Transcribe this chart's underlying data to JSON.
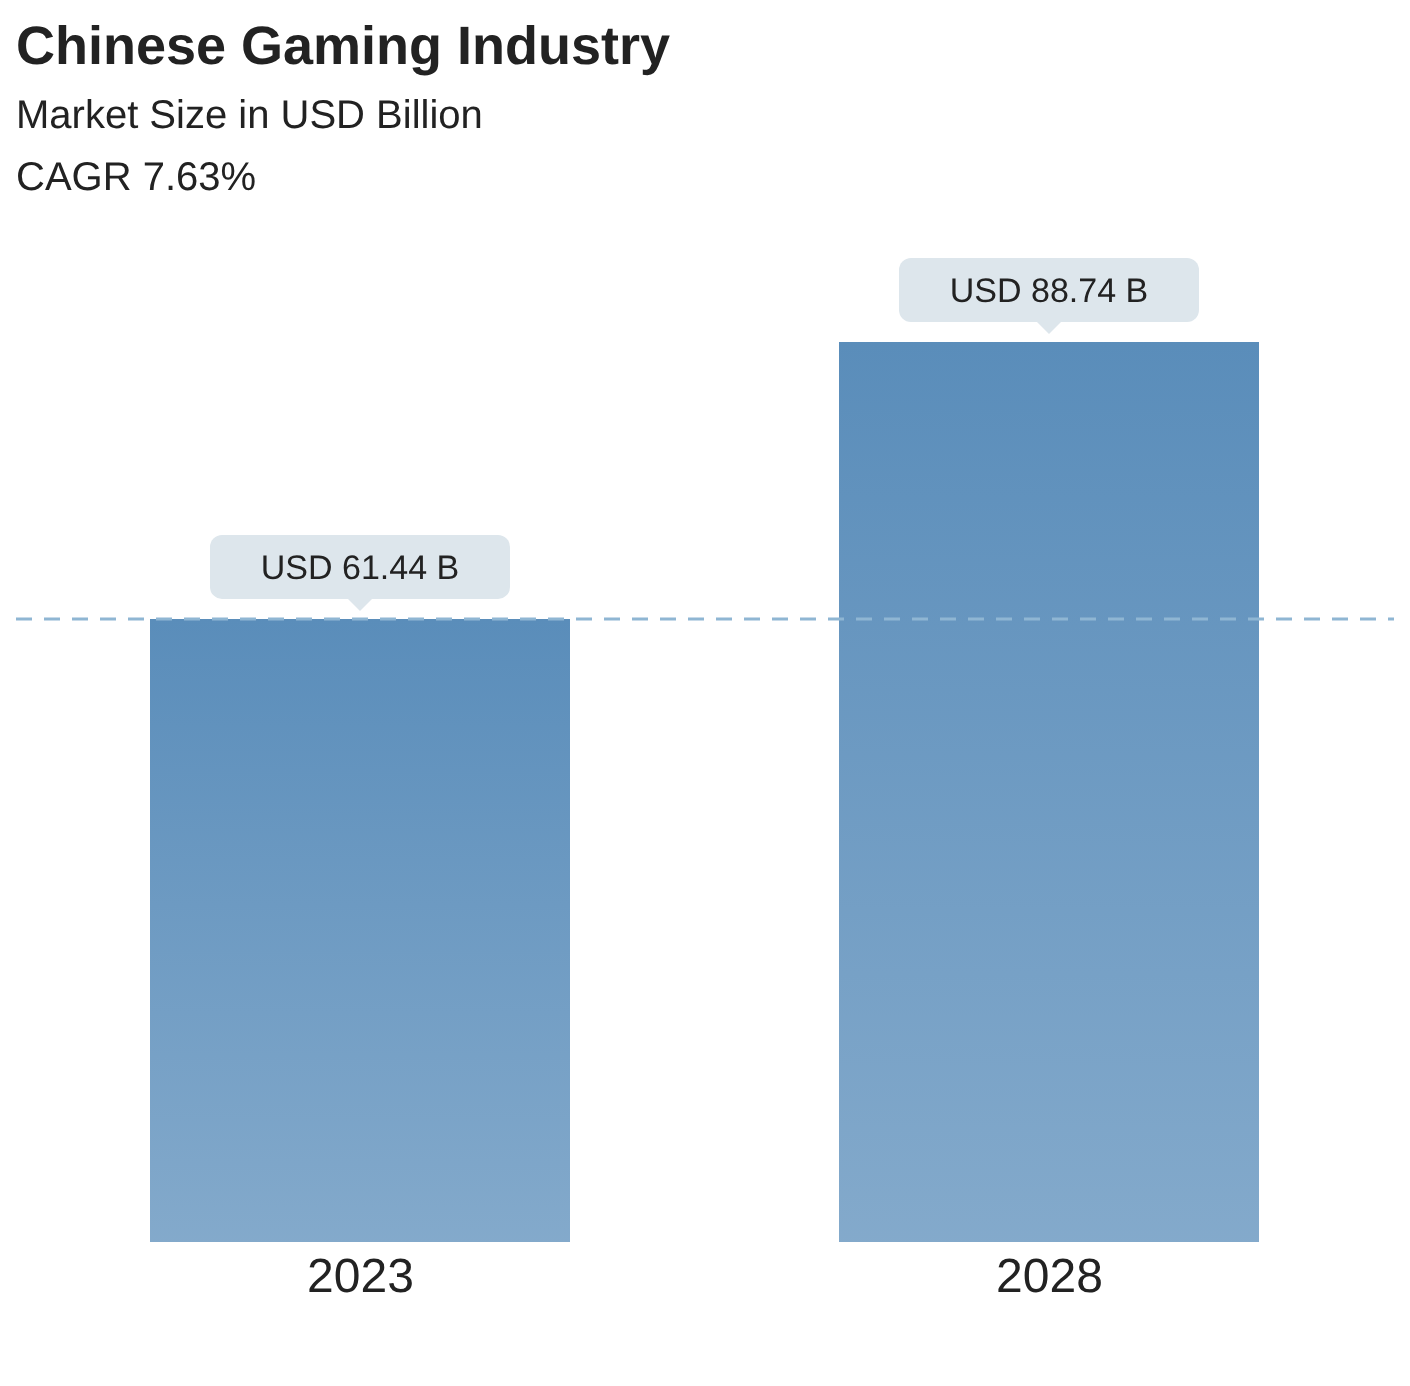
{
  "chart_data": {
    "type": "bar",
    "title": "Chinese Gaming Industry",
    "subtitle": "Market Size in USD Billion",
    "annotations": [
      "CAGR 7.63%"
    ],
    "categories": [
      "2023",
      "2028"
    ],
    "series": [
      {
        "color": "#5a8dba",
        "values": [
          61.44,
          88.74
        ],
        "value_labels": [
          "USD 61.44 B",
          "USD 88.74 B"
        ]
      }
    ],
    "ref_lines": [
      {
        "axis": "y",
        "value": 61.44,
        "color": "#8fb6d3",
        "line_style": "dashed"
      }
    ]
  }
}
